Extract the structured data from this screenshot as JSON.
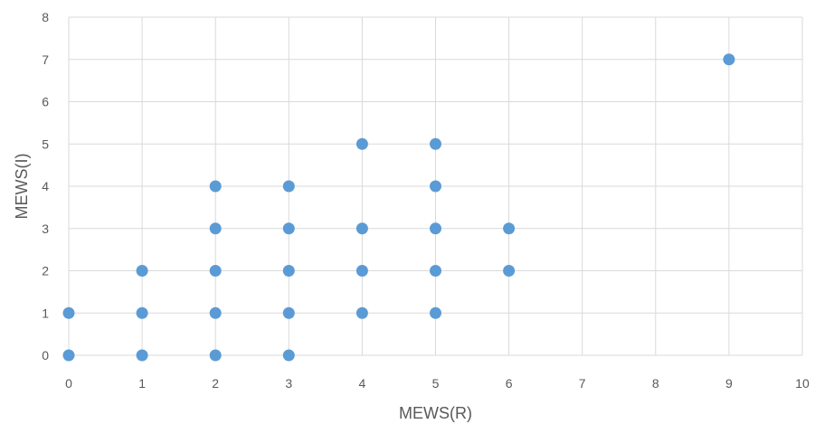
{
  "chart_data": {
    "type": "scatter",
    "title": "",
    "xlabel": "MEWS(R)",
    "ylabel": "MEWS(I)",
    "xlim": [
      0,
      10
    ],
    "ylim": [
      0,
      8
    ],
    "x_ticks": [
      "0",
      "1",
      "2",
      "3",
      "4",
      "5",
      "6",
      "7",
      "8",
      "9",
      "10"
    ],
    "y_ticks": [
      "0",
      "1",
      "2",
      "3",
      "4",
      "5",
      "6",
      "7",
      "8"
    ],
    "grid": true,
    "legend": "none",
    "marker_color": "#5b9bd5",
    "series": [
      {
        "points": [
          {
            "x": 0,
            "y": 0
          },
          {
            "x": 0,
            "y": 1
          },
          {
            "x": 1,
            "y": 0
          },
          {
            "x": 1,
            "y": 1
          },
          {
            "x": 1,
            "y": 2
          },
          {
            "x": 2,
            "y": 0
          },
          {
            "x": 2,
            "y": 1
          },
          {
            "x": 2,
            "y": 2
          },
          {
            "x": 2,
            "y": 3
          },
          {
            "x": 2,
            "y": 4
          },
          {
            "x": 3,
            "y": 0
          },
          {
            "x": 3,
            "y": 1
          },
          {
            "x": 3,
            "y": 2
          },
          {
            "x": 3,
            "y": 3
          },
          {
            "x": 3,
            "y": 4
          },
          {
            "x": 4,
            "y": 1
          },
          {
            "x": 4,
            "y": 2
          },
          {
            "x": 4,
            "y": 3
          },
          {
            "x": 4,
            "y": 5
          },
          {
            "x": 5,
            "y": 1
          },
          {
            "x": 5,
            "y": 2
          },
          {
            "x": 5,
            "y": 3
          },
          {
            "x": 5,
            "y": 4
          },
          {
            "x": 5,
            "y": 5
          },
          {
            "x": 6,
            "y": 2
          },
          {
            "x": 6,
            "y": 3
          },
          {
            "x": 9,
            "y": 7
          }
        ]
      }
    ]
  }
}
